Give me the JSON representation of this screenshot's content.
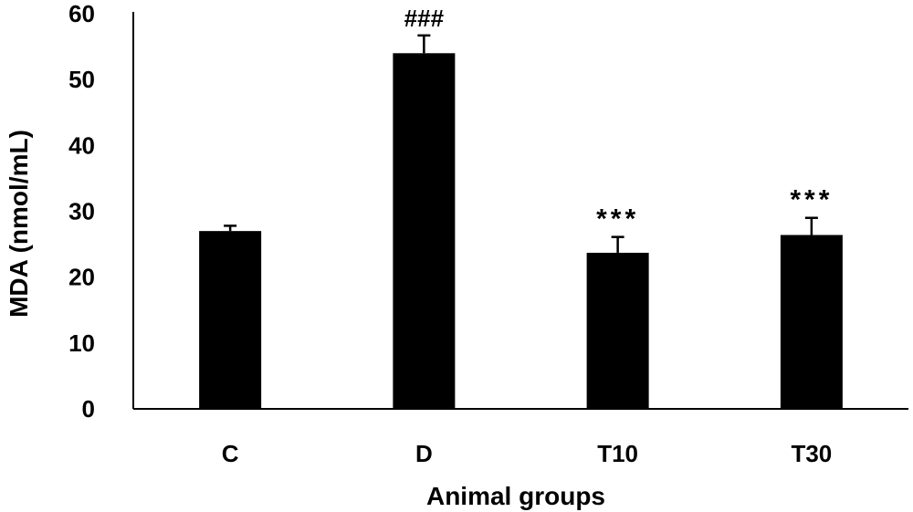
{
  "chart_data": {
    "type": "bar",
    "title": "",
    "xlabel": "Animal groups",
    "ylabel": "MDA (nmol/mL)",
    "ylim": [
      0,
      60
    ],
    "yticks": [
      0,
      10,
      20,
      30,
      40,
      50,
      60
    ],
    "categories": [
      "C",
      "D",
      "T10",
      "T30"
    ],
    "values": [
      27,
      54,
      23.7,
      26.4
    ],
    "errors": [
      0.8,
      2.7,
      2.4,
      2.6
    ],
    "annotations": [
      "",
      "###",
      "***",
      "***"
    ],
    "grid": false,
    "legend": "none",
    "bar_color": "#000000"
  }
}
